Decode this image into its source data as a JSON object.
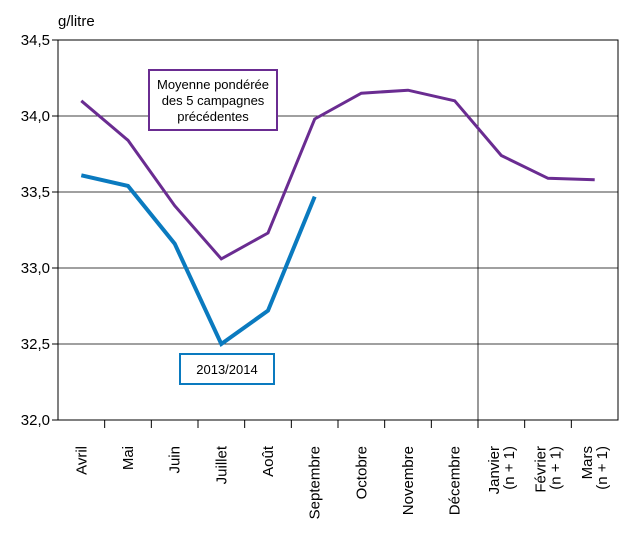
{
  "chart_data": {
    "type": "line",
    "ylabel": "g/litre",
    "ylim": [
      32.0,
      34.5
    ],
    "yticks": [
      "32,0",
      "32,5",
      "33,0",
      "33,5",
      "34,0",
      "34,5"
    ],
    "grid": "horizontal",
    "categories": [
      [
        "Avril"
      ],
      [
        "Mai"
      ],
      [
        "Juin"
      ],
      [
        "Juillet"
      ],
      [
        "Août"
      ],
      [
        "Septembre"
      ],
      [
        "Octobre"
      ],
      [
        "Novembre"
      ],
      [
        "Décembre"
      ],
      [
        "Janvier",
        "(n + 1)"
      ],
      [
        "Février",
        "(n + 1)"
      ],
      [
        "Mars",
        "(n + 1)"
      ]
    ],
    "series": [
      {
        "name": "Moyenne pondérée des 5 campagnes précédentes",
        "label_lines": [
          "Moyenne pondérée",
          "des 5 campagnes",
          "précédentes"
        ],
        "color": "#6a2c91",
        "values": [
          34.1,
          33.84,
          33.41,
          33.06,
          33.23,
          33.98,
          34.15,
          34.17,
          34.1,
          33.74,
          33.59,
          33.58
        ]
      },
      {
        "name": "2013/2014",
        "label_lines": [
          "2013/2014"
        ],
        "color": "#0a7abf",
        "values": [
          33.61,
          33.54,
          33.16,
          32.5,
          32.72,
          33.47,
          null,
          null,
          null,
          null,
          null,
          null
        ]
      }
    ],
    "vertical_separator_after": "Décembre"
  }
}
